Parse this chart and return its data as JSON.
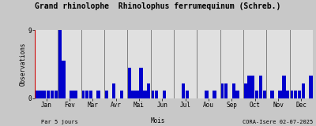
{
  "title": "Grand rhinolophe  Rhinolophus ferrumequinum (Schreb.)",
  "ylabel": "Observations",
  "xlabel": "Mois",
  "footer_left": "Par 5 jours",
  "footer_right": "CORA-Isere 02-07-2025",
  "bar_color": "#0000cc",
  "background_color": "#c8c8c8",
  "plot_bg_color": "#e0e0e0",
  "ylim": [
    0,
    9
  ],
  "month_labels": [
    "Jan",
    "Fev",
    "Mar",
    "Avr",
    "Mai",
    "Jun",
    "Jul",
    "Aou",
    "Sep",
    "Oct",
    "Nov",
    "Dec"
  ],
  "values": [
    1,
    1,
    1,
    1,
    1,
    1,
    9,
    5,
    0,
    1,
    1,
    0,
    1,
    1,
    1,
    0,
    1,
    0,
    1,
    0,
    2,
    0,
    1,
    0,
    4,
    1,
    1,
    4,
    1,
    2,
    1,
    1,
    0,
    1,
    0,
    0,
    0,
    0,
    2,
    1,
    0,
    0,
    0,
    0,
    1,
    0,
    1,
    0,
    2,
    2,
    0,
    2,
    1,
    0,
    2,
    3,
    3,
    1,
    3,
    1,
    0,
    1,
    0,
    1,
    3,
    1,
    1,
    1,
    1,
    2,
    0,
    3
  ],
  "title_fontsize": 7,
  "axis_fontsize": 5.5,
  "footer_fontsize": 5,
  "red_line_color": "#cc0000",
  "vline_color": "#808080"
}
